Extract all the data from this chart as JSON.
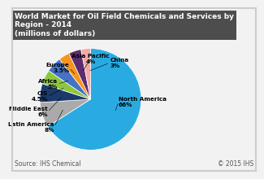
{
  "title": "World Market for Oil Field Chemicals and Services by Region - 2014\n(millions of dollars)",
  "slices": [
    {
      "label": "North America\n66%",
      "value": 66,
      "color": "#29ABE2"
    },
    {
      "label": "Latin America\n8%",
      "value": 8,
      "color": "#AAAAAA"
    },
    {
      "label": "Middle East\n6%",
      "value": 6,
      "color": "#1B3A6B"
    },
    {
      "label": "CIS\n4.5%",
      "value": 4.5,
      "color": "#8DC63F"
    },
    {
      "label": "Africa\n5%",
      "value": 5,
      "color": "#4472C4"
    },
    {
      "label": "Europe\n3.5%",
      "value": 3.5,
      "color": "#F7941D"
    },
    {
      "label": "Asia Pacific\n4%",
      "value": 4,
      "color": "#5B2C6F"
    },
    {
      "label": "China\n3%",
      "value": 3,
      "color": "#F4A9A8"
    }
  ],
  "source_text": "Source: IHS Chemical",
  "copyright_text": "© 2015 IHS",
  "title_bg_color": "#4D4D4D",
  "title_text_color": "#FFFFFF",
  "bg_color": "#F2F2F2",
  "border_color": "#CCCCCC",
  "source_fontsize": 5.5,
  "title_fontsize": 6.5,
  "label_fontsize": 5.2
}
